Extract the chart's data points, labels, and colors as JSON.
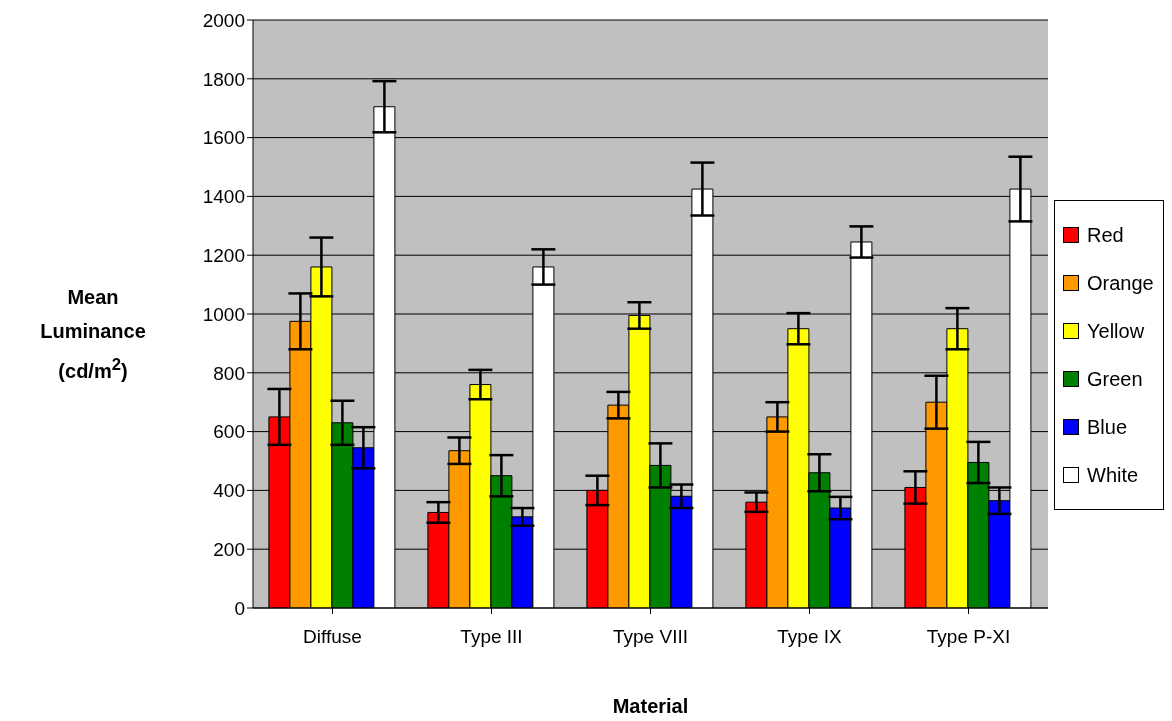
{
  "chart_data": {
    "type": "bar",
    "xlabel": "Material",
    "ylabel": "Mean Luminance (cd/m$^{2}$)",
    "categories": [
      "Diffuse",
      "Type III",
      "Type VIII",
      "Type IX",
      "Type P-XI"
    ],
    "series": [
      {
        "name": "Red",
        "color": "#ff0000",
        "values": [
          650,
          325,
          400,
          360,
          410
        ],
        "errors": [
          95,
          35,
          50,
          33,
          55
        ]
      },
      {
        "name": "Orange",
        "color": "#ff9900",
        "values": [
          975,
          535,
          690,
          650,
          700
        ],
        "errors": [
          95,
          45,
          45,
          50,
          90
        ]
      },
      {
        "name": "Yellow",
        "color": "#ffff00",
        "values": [
          1160,
          760,
          995,
          950,
          950
        ],
        "errors": [
          100,
          50,
          45,
          53,
          70
        ]
      },
      {
        "name": "Green",
        "color": "#008000",
        "values": [
          630,
          450,
          485,
          460,
          495
        ],
        "errors": [
          75,
          70,
          75,
          63,
          70
        ]
      },
      {
        "name": "Blue",
        "color": "#0000ff",
        "values": [
          545,
          310,
          380,
          340,
          365
        ],
        "errors": [
          70,
          30,
          40,
          38,
          45
        ]
      },
      {
        "name": "White",
        "color": "#ffffff",
        "values": [
          1705,
          1160,
          1425,
          1245,
          1425
        ],
        "errors": [
          87,
          60,
          90,
          53,
          110
        ]
      }
    ],
    "ylim": [
      0,
      2000
    ],
    "yticks": [
      0,
      200,
      400,
      600,
      800,
      1000,
      1200,
      1400,
      1600,
      1800,
      2000
    ],
    "grid": "y",
    "legend": "right"
  }
}
